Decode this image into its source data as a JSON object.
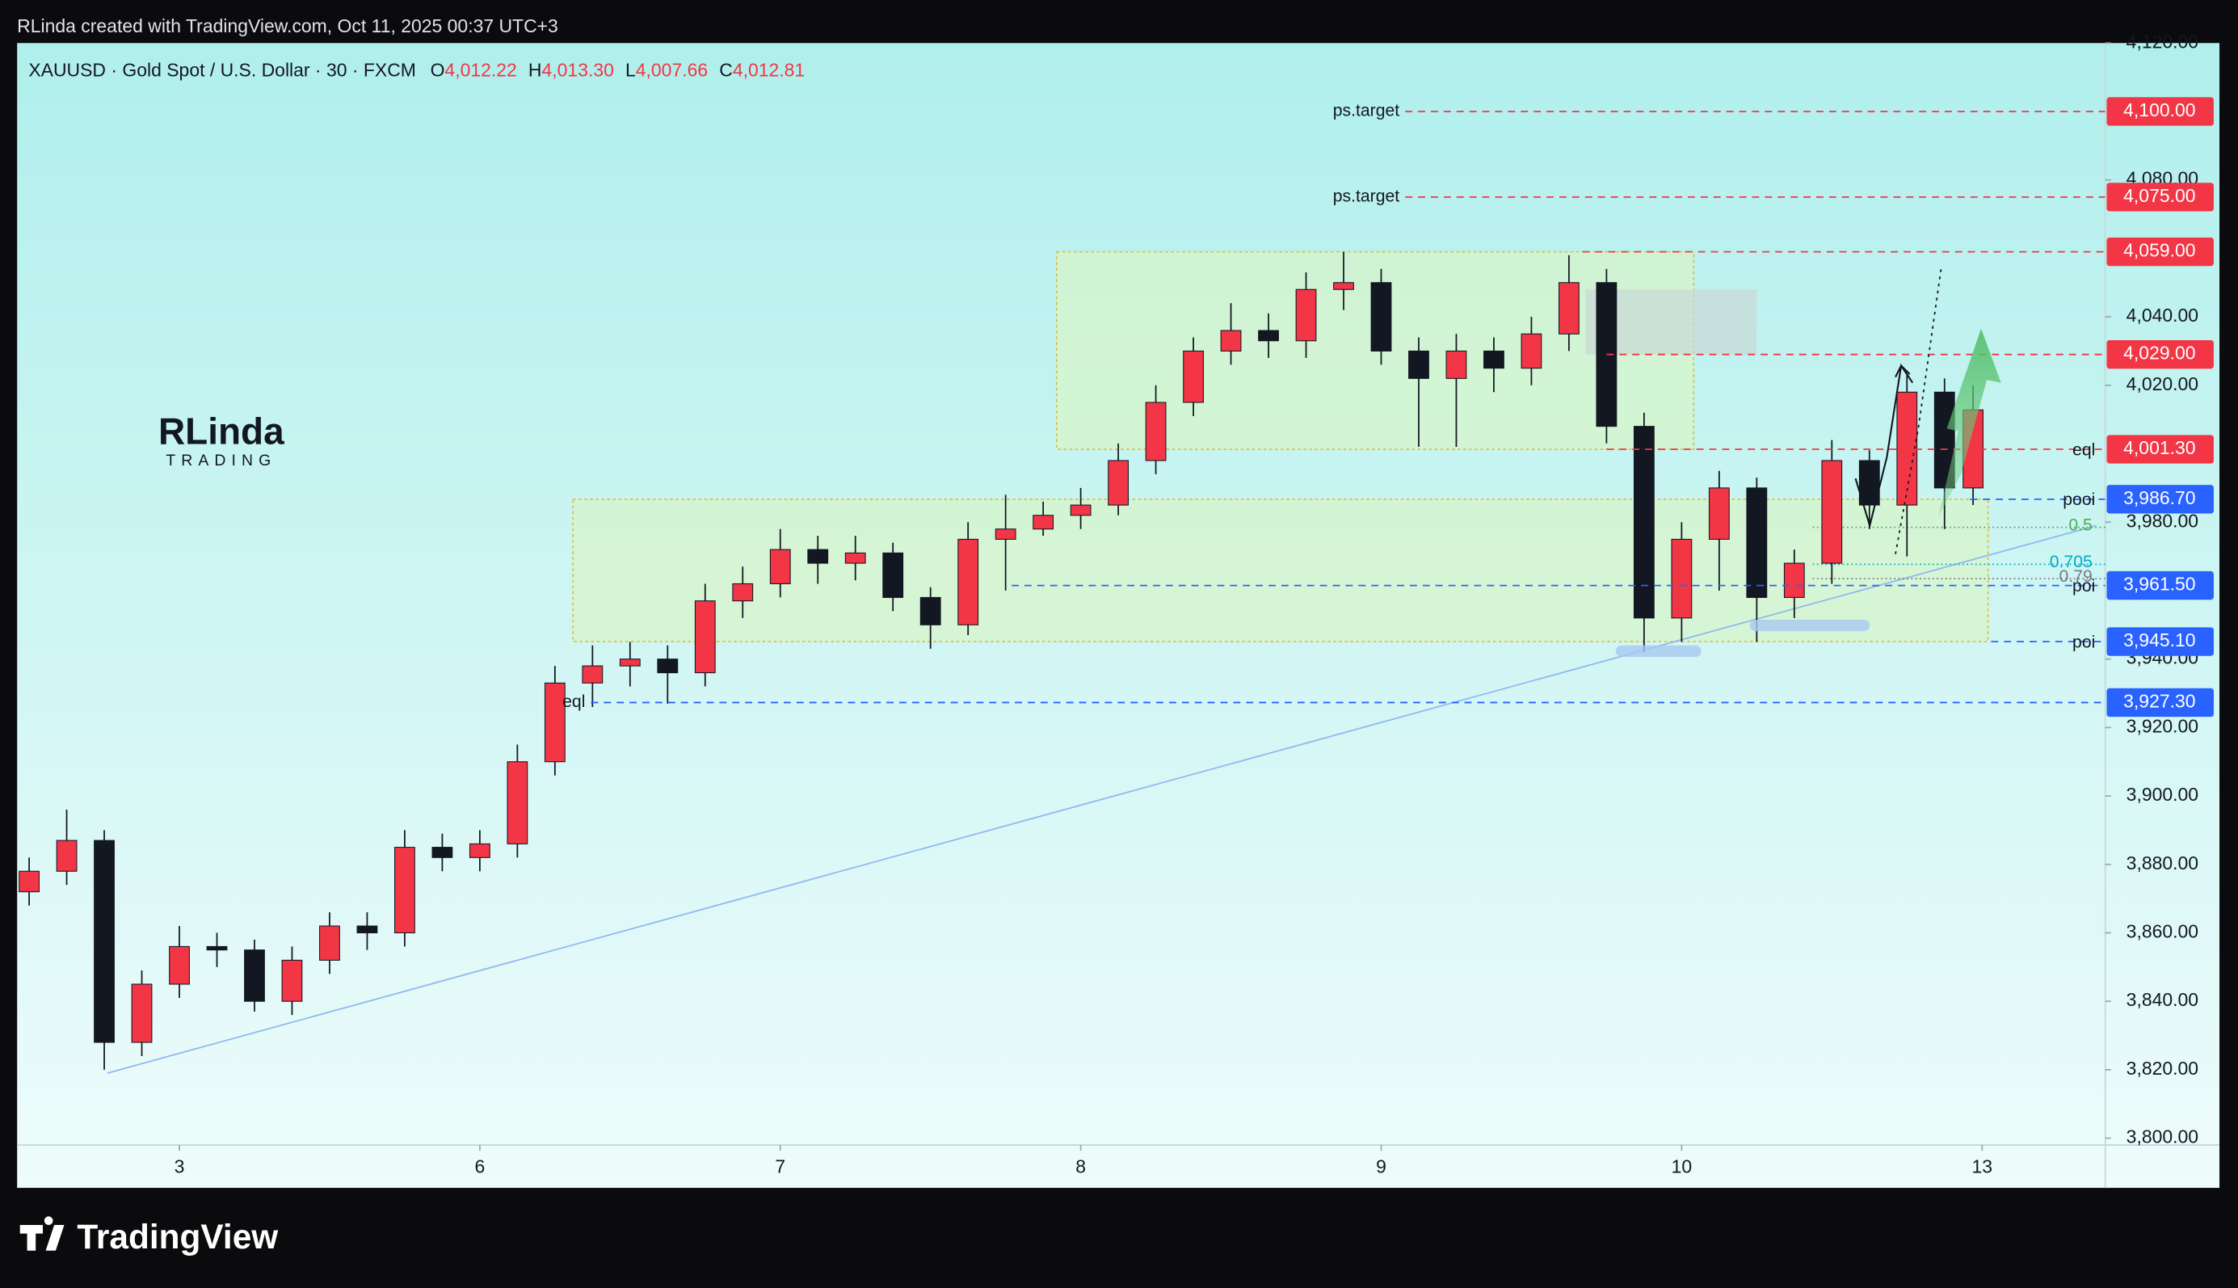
{
  "chart_data": {
    "type": "candlestick",
    "caption": "RLinda created with TradingView.com, Oct 11, 2025 00:37 UTC+3",
    "title": "XAUUSD · Gold Spot / U.S. Dollar · 30 · FXCM",
    "ohlc_header": [
      {
        "name": "O",
        "value": 4012.22,
        "label": "4,012.22"
      },
      {
        "name": "H",
        "value": 4013.3,
        "label": "4,013.30"
      },
      {
        "name": "L",
        "value": 4007.66,
        "label": "4,007.66"
      },
      {
        "name": "C",
        "value": 4012.81,
        "label": "4,012.81"
      }
    ],
    "watermark": "RLinda",
    "watermark_sub": "TRADING",
    "footer": "TradingView",
    "up_color": "#f23645",
    "down_color": "#131722",
    "xlim": [
      -0.54,
      6.41
    ],
    "ylim": [
      3798,
      4120
    ],
    "grid": false,
    "xticks": [
      {
        "value": 0,
        "label": "3"
      },
      {
        "value": 1,
        "label": "6"
      },
      {
        "value": 2,
        "label": "7"
      },
      {
        "value": 3,
        "label": "8"
      },
      {
        "value": 4,
        "label": "9"
      },
      {
        "value": 5,
        "label": "10"
      },
      {
        "value": 6,
        "label": "13"
      }
    ],
    "yticks": [
      {
        "value": 3800,
        "label": "3,800.00"
      },
      {
        "value": 3820,
        "label": "3,820.00"
      },
      {
        "value": 3840,
        "label": "3,840.00"
      },
      {
        "value": 3860,
        "label": "3,860.00"
      },
      {
        "value": 3880,
        "label": "3,880.00"
      },
      {
        "value": 3900,
        "label": "3,900.00"
      },
      {
        "value": 3920,
        "label": "3,920.00"
      },
      {
        "value": 3940,
        "label": "3,940.00"
      },
      {
        "value": 3980,
        "label": "3,980.00"
      },
      {
        "value": 4020,
        "label": "4,020.00"
      },
      {
        "value": 4040,
        "label": "4,040.00"
      },
      {
        "value": 4080,
        "label": "4,080.00"
      },
      {
        "value": 4120,
        "label": "4,120.00"
      }
    ],
    "x": [
      -0.5,
      -0.375,
      -0.25,
      -0.125,
      0,
      0.125,
      0.25,
      0.375,
      0.5,
      0.625,
      0.75,
      0.875,
      1,
      1.125,
      1.25,
      1.375,
      1.5,
      1.625,
      1.75,
      1.875,
      2,
      2.125,
      2.25,
      2.375,
      2.5,
      2.625,
      2.75,
      2.875,
      3,
      3.125,
      3.25,
      3.375,
      3.5,
      3.625,
      3.75,
      3.875,
      4,
      4.125,
      4.25,
      4.375,
      4.5,
      4.625,
      4.75,
      4.875,
      5,
      5.125,
      5.25,
      5.375,
      5.5,
      5.625,
      5.75,
      5.875,
      5.97
    ],
    "open": [
      3872,
      3878,
      3887,
      3828,
      3845,
      3856,
      3855,
      3840,
      3852,
      3862,
      3860,
      3885,
      3882,
      3886,
      3910,
      3933,
      3938,
      3940,
      3936,
      3957,
      3962,
      3972,
      3968,
      3971,
      3958,
      3950,
      3975,
      3978,
      3982,
      3985,
      3998,
      4015,
      4030,
      4036,
      4033,
      4048,
      4050,
      4030,
      4022,
      4030,
      4025,
      4035,
      4050,
      4008,
      3952,
      3975,
      3990,
      3958,
      3968,
      3998,
      3985,
      4018,
      3990
    ],
    "high": [
      3882,
      3896,
      3890,
      3849,
      3862,
      3860,
      3858,
      3856,
      3866,
      3866,
      3890,
      3889,
      3890,
      3915,
      3938,
      3944,
      3945,
      3944,
      3962,
      3967,
      3978,
      3976,
      3976,
      3974,
      3961,
      3980,
      3988,
      3986,
      3990,
      4003,
      4020,
      4034,
      4044,
      4041,
      4053,
      4059,
      4054,
      4034,
      4035,
      4034,
      4040,
      4058,
      4054,
      4012,
      3980,
      3995,
      3993,
      3972,
      4004,
      4001,
      4023,
      4022,
      4020
    ],
    "low": [
      3868,
      3874,
      3820,
      3824,
      3841,
      3850,
      3837,
      3836,
      3848,
      3855,
      3856,
      3878,
      3878,
      3882,
      3906,
      3926,
      3932,
      3927,
      3932,
      3952,
      3958,
      3962,
      3963,
      3954,
      3943,
      3947,
      3960,
      3976,
      3978,
      3982,
      3994,
      4011,
      4026,
      4028,
      4028,
      4042,
      4026,
      4002,
      4002,
      4018,
      4020,
      4030,
      4003,
      3942,
      3945,
      3960,
      3945,
      3952,
      3962,
      3978,
      3970,
      3978,
      3985
    ],
    "close": [
      3878,
      3887,
      3828,
      3845,
      3856,
      3855,
      3840,
      3852,
      3862,
      3860,
      3885,
      3882,
      3886,
      3910,
      3933,
      3938,
      3940,
      3936,
      3957,
      3962,
      3972,
      3968,
      3971,
      3958,
      3950,
      3975,
      3978,
      3982,
      3985,
      3998,
      4015,
      4030,
      4036,
      4033,
      4048,
      4050,
      4030,
      4022,
      4030,
      4025,
      4035,
      4050,
      4008,
      3952,
      3975,
      3990,
      3958,
      3968,
      3998,
      3985,
      4018,
      3990,
      4012.81
    ],
    "zones": [
      {
        "x": [
          2.92,
          5.04
        ],
        "y": [
          4001.3,
          4059
        ],
        "color": "#d8f5c8"
      },
      {
        "x": [
          1.31,
          6.02
        ],
        "y": [
          3945.1,
          3986.7
        ],
        "color": "#d8f5c8"
      },
      {
        "x": [
          4.68,
          5.25
        ],
        "y": [
          4029,
          4048
        ],
        "color": "#c9d9d6"
      }
    ],
    "trendline": {
      "x": [
        -0.24,
        6.38
      ],
      "y": [
        3819,
        3979
      ],
      "color": "#90b8f0"
    },
    "levels": [
      {
        "value": 4100,
        "label": "4,100.00",
        "text": "ps.target",
        "x_from": 4.08,
        "text_at": "start",
        "color": "#f23645"
      },
      {
        "value": 4075,
        "label": "4,075.00",
        "text": "ps.target",
        "x_from": 4.08,
        "text_at": "start",
        "color": "#f23645"
      },
      {
        "value": 4059,
        "label": "4,059.00",
        "x_from": 4.67,
        "color": "#f23645"
      },
      {
        "value": 4029,
        "label": "4,029.00",
        "x_from": 4.75,
        "color": "#f23645"
      },
      {
        "value": 4001.3,
        "label": "4,001.30",
        "text": "eql",
        "x_from": 4.75,
        "text_at": "end",
        "color": "#f23645"
      },
      {
        "value": 3986.7,
        "label": "3,986.70",
        "text": "pooi",
        "x_from": 5.96,
        "text_at": "end",
        "color": "#2962ff"
      },
      {
        "value": 3961.5,
        "label": "3,961.50",
        "text": "poi",
        "x_from": 2.77,
        "text_at": "end",
        "color": "#2962ff"
      },
      {
        "value": 3945.1,
        "label": "3,945.10",
        "text": "poi",
        "x_from": 6.03,
        "text_at": "end",
        "color": "#2962ff"
      },
      {
        "value": 3927.3,
        "label": "3,927.30",
        "text": "eql",
        "x_from": 1.37,
        "text_at": "start",
        "color": "#2962ff"
      }
    ],
    "fib": [
      {
        "ratio": 0.5,
        "price": 3978.5,
        "color": "#4caf50"
      },
      {
        "ratio": 0.705,
        "price": 3967.7,
        "color": "#00acc1"
      },
      {
        "ratio": 0.79,
        "price": 3963.5,
        "color": "#787b86"
      }
    ]
  }
}
